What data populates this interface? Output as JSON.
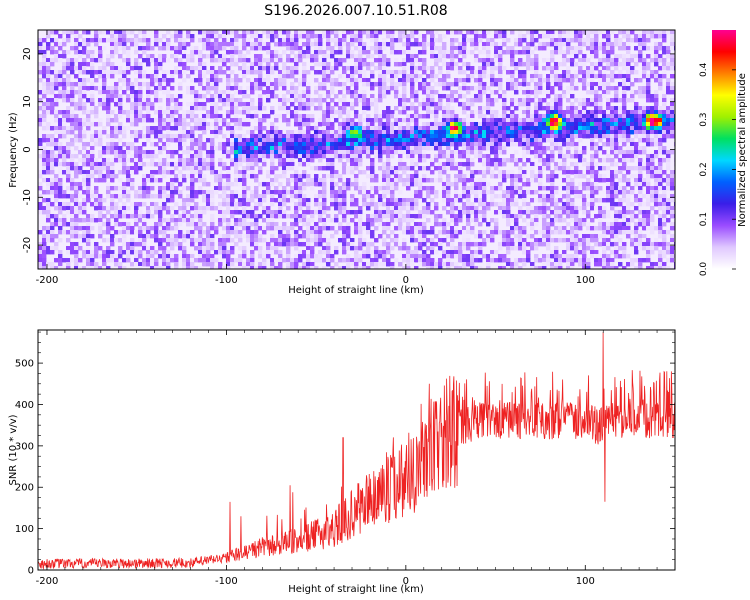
{
  "figure": {
    "title": "S196.2026.007.10.51.R08"
  },
  "chart_data": [
    {
      "type": "heatmap",
      "xlabel": "Height of straight line (km)",
      "ylabel": "Frequency (Hz)",
      "xlim": [
        -205,
        150
      ],
      "ylim": [
        -25,
        25
      ],
      "x_ticks": [
        -200,
        -100,
        0,
        100
      ],
      "y_ticks": [
        -20,
        -10,
        0,
        10,
        20
      ],
      "colorbar": {
        "label": "Normalized spectral amplitude",
        "range": [
          0,
          0.48
        ],
        "ticks": [
          0,
          0.1,
          0.2,
          0.3,
          0.4
        ],
        "colormap": [
          "#ffffff",
          "#e0c8ff",
          "#9a4cff",
          "#3a1ee8",
          "#0060ff",
          "#00d8ff",
          "#00e060",
          "#a0f000",
          "#ffff00",
          "#ff8000",
          "#ff0000",
          "#ff0090"
        ]
      },
      "signal_band": {
        "x_start": -95,
        "frequency_start": 0,
        "frequency_end": 6,
        "peaks": [
          {
            "x": -28,
            "frequency": 3.5,
            "amplitude": 0.25
          },
          {
            "x": 27,
            "frequency": 4.5,
            "amplitude": 0.38
          },
          {
            "x": 83,
            "frequency": 6,
            "amplitude": 0.42
          },
          {
            "x": 138,
            "frequency": 6,
            "amplitude": 0.44
          }
        ]
      },
      "grid": false
    },
    {
      "type": "line",
      "xlabel": "Height of straight line (km)",
      "ylabel": "SNR (10 * v/v)",
      "xlim": [
        -205,
        150
      ],
      "ylim": [
        0,
        580
      ],
      "x_ticks": [
        -200,
        -100,
        0,
        100
      ],
      "y_ticks": [
        0,
        100,
        200,
        300,
        400,
        500
      ],
      "series_color": "#ee2222",
      "series": [
        {
          "baseline_x": [
            -205,
            -120,
            -100,
            -80,
            -60,
            -40,
            -20,
            0,
            10,
            20,
            30,
            40,
            60,
            80,
            100,
            110,
            115,
            130,
            150
          ],
          "baseline_y": [
            15,
            17,
            30,
            55,
            70,
            100,
            170,
            230,
            270,
            315,
            345,
            360,
            360,
            360,
            360,
            340,
            360,
            365,
            360
          ],
          "spikes": [
            {
              "x": -92,
              "y": 130
            },
            {
              "x": -35,
              "y": 320
            },
            {
              "x": 13,
              "y": 450
            },
            {
              "x": 110,
              "y": 575
            },
            {
              "x": 111,
              "y": 165
            },
            {
              "x": 148,
              "y": 480
            }
          ]
        }
      ],
      "grid": false
    }
  ]
}
